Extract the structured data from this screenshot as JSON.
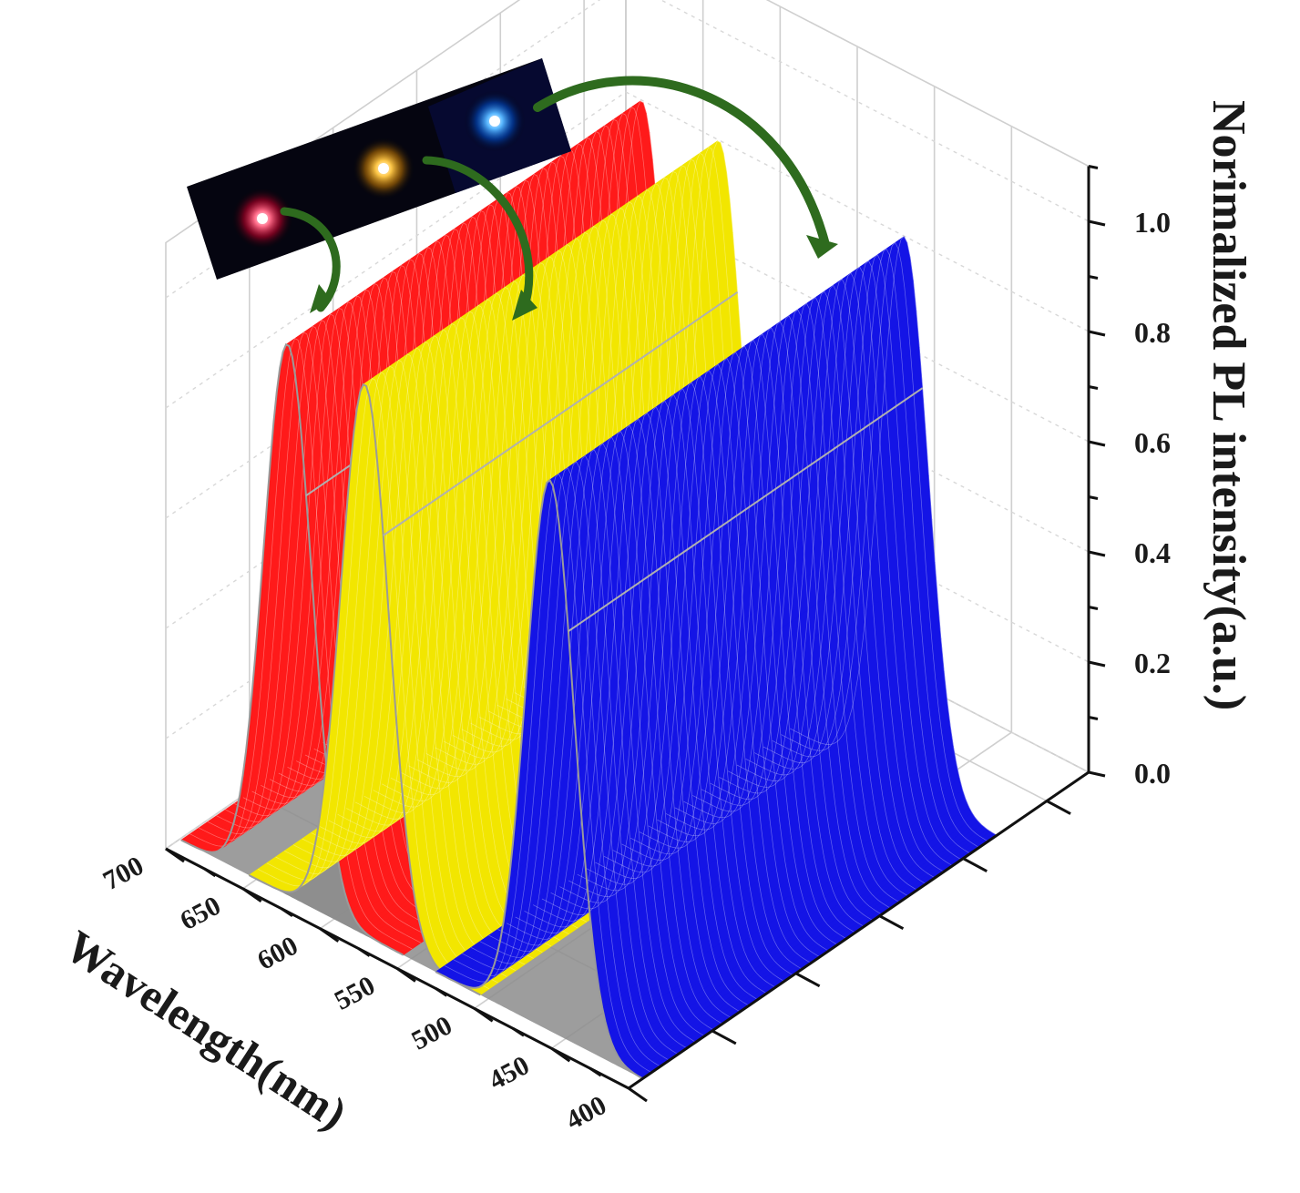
{
  "chart_data": {
    "type": "area",
    "projection": "3d waterfall",
    "ylabel": "Norimalized PL intensity(a.u.)",
    "xlabel": "Wavelength(nm)",
    "x_ticks": [
      "700",
      "650",
      "600",
      "550",
      "500",
      "450",
      "400"
    ],
    "y_ticks": [
      "0.0",
      "0.2",
      "0.4",
      "0.6",
      "0.8",
      "1.0"
    ],
    "xlim": [
      400,
      700
    ],
    "ylim": [
      0,
      1.0
    ],
    "grid": true,
    "series": [
      {
        "color": "#ff1a1a",
        "peak_wavelength": 630,
        "peak": 1.0
      },
      {
        "color": "#f2e600",
        "peak_wavelength": 580,
        "peak": 1.0
      },
      {
        "color": "#1414e6",
        "peak_wavelength": 460,
        "peak": 1.0
      }
    ],
    "inset": {
      "description": "photograph of three lit LEDs",
      "led_colors": [
        "#ff2d55",
        "#ffb000",
        "#1a8cff"
      ]
    },
    "arrow_color": "#2e6b1e"
  }
}
